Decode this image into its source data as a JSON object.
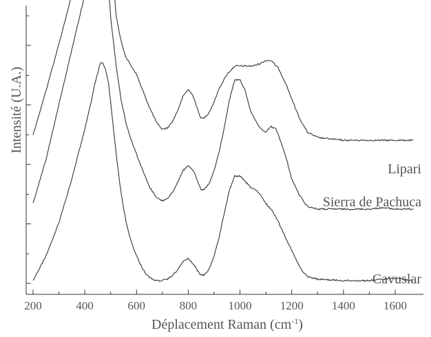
{
  "chart_data": {
    "type": "line",
    "xlabel": "Déplacement Raman (cm",
    "xlabel_sup": "-1",
    "xlabel_close": ")",
    "ylabel": "Intensité (U.A.)",
    "xlim": [
      200,
      1670
    ],
    "xticks": [
      "200",
      "400",
      "600",
      "800",
      "1000",
      "1200",
      "1400",
      "1600"
    ],
    "xtick_values": [
      200,
      400,
      600,
      800,
      1000,
      1200,
      1400,
      1600
    ],
    "ytick_count": 6,
    "y_tick_labels_shown": false,
    "series": [
      {
        "name": "Lipari",
        "offset": 0.5,
        "x": [
          200,
          250,
          300,
          350,
          400,
          420,
          440,
          460,
          470,
          480,
          490,
          500,
          510,
          520,
          540,
          560,
          580,
          600,
          620,
          650,
          680,
          700,
          720,
          740,
          760,
          780,
          800,
          820,
          840,
          850,
          860,
          880,
          900,
          920,
          950,
          980,
          1000,
          1020,
          1050,
          1080,
          1100,
          1120,
          1150,
          1180,
          1200,
          1230,
          1260,
          1300,
          1400,
          1500,
          1600,
          1670
        ],
        "y": [
          0.04,
          0.2,
          0.37,
          0.55,
          0.72,
          0.8,
          0.91,
          1.0,
          1.0,
          1.0,
          0.95,
          0.8,
          0.62,
          0.48,
          0.38,
          0.32,
          0.29,
          0.26,
          0.21,
          0.14,
          0.08,
          0.06,
          0.065,
          0.09,
          0.13,
          0.18,
          0.205,
          0.18,
          0.12,
          0.1,
          0.1,
          0.12,
          0.16,
          0.21,
          0.26,
          0.29,
          0.29,
          0.29,
          0.29,
          0.3,
          0.31,
          0.31,
          0.28,
          0.22,
          0.17,
          0.1,
          0.05,
          0.03,
          0.02,
          0.02,
          0.02,
          0.02
        ]
      },
      {
        "name": "Sierra de Pachuca",
        "offset": 0.25,
        "x": [
          200,
          250,
          300,
          350,
          400,
          420,
          440,
          460,
          470,
          480,
          490,
          500,
          520,
          540,
          560,
          580,
          600,
          620,
          650,
          680,
          700,
          720,
          740,
          760,
          780,
          800,
          820,
          840,
          850,
          860,
          880,
          900,
          920,
          940,
          960,
          980,
          1000,
          1020,
          1040,
          1060,
          1080,
          1100,
          1120,
          1140,
          1160,
          1180,
          1200,
          1230,
          1260,
          1300,
          1400,
          1500,
          1550,
          1600,
          1670
        ],
        "y": [
          0.04,
          0.2,
          0.4,
          0.6,
          0.8,
          0.9,
          0.97,
          1.0,
          0.98,
          0.94,
          0.85,
          0.72,
          0.55,
          0.42,
          0.33,
          0.27,
          0.22,
          0.17,
          0.1,
          0.06,
          0.05,
          0.06,
          0.08,
          0.12,
          0.16,
          0.18,
          0.16,
          0.11,
          0.09,
          0.09,
          0.11,
          0.16,
          0.23,
          0.32,
          0.42,
          0.49,
          0.49,
          0.45,
          0.38,
          0.34,
          0.31,
          0.3,
          0.32,
          0.31,
          0.26,
          0.2,
          0.13,
          0.07,
          0.03,
          0.02,
          0.02,
          0.02,
          0.025,
          0.02,
          0.02
        ]
      },
      {
        "name": "Cavuslar",
        "offset": 0.0,
        "x": [
          200,
          250,
          300,
          350,
          400,
          420,
          440,
          460,
          470,
          480,
          490,
          500,
          520,
          540,
          560,
          580,
          600,
          620,
          640,
          660,
          680,
          700,
          720,
          740,
          760,
          780,
          800,
          820,
          840,
          850,
          860,
          880,
          900,
          920,
          940,
          960,
          980,
          1000,
          1020,
          1040,
          1060,
          1080,
          1100,
          1120,
          1140,
          1160,
          1180,
          1200,
          1220,
          1240,
          1260,
          1300,
          1400,
          1500,
          1550,
          1600,
          1670
        ],
        "y": [
          0.01,
          0.1,
          0.22,
          0.38,
          0.56,
          0.64,
          0.73,
          0.8,
          0.8,
          0.78,
          0.74,
          0.66,
          0.48,
          0.33,
          0.22,
          0.15,
          0.1,
          0.06,
          0.03,
          0.015,
          0.01,
          0.01,
          0.015,
          0.03,
          0.05,
          0.08,
          0.09,
          0.07,
          0.04,
          0.03,
          0.03,
          0.05,
          0.1,
          0.17,
          0.26,
          0.34,
          0.39,
          0.39,
          0.37,
          0.35,
          0.34,
          0.32,
          0.29,
          0.27,
          0.24,
          0.2,
          0.16,
          0.12,
          0.08,
          0.045,
          0.025,
          0.015,
          0.01,
          0.01,
          0.015,
          0.02,
          0.01
        ]
      }
    ],
    "colors": {
      "line": "#333333",
      "text": "#555555"
    }
  }
}
